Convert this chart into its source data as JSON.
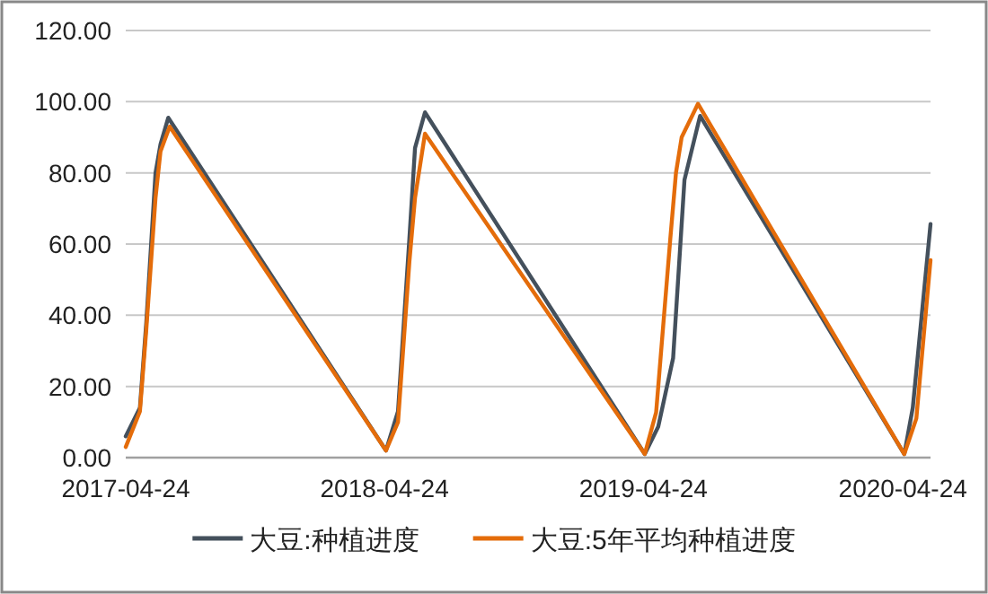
{
  "chart_data": {
    "type": "line",
    "x": [
      "2017-04-24",
      "2017-05-14",
      "2017-05-23",
      "2017-06-05",
      "2017-06-12",
      "2017-06-23",
      "2018-04-26",
      "2018-05-13",
      "2018-05-29",
      "2018-06-06",
      "2018-06-20",
      "2019-04-26",
      "2019-05-15",
      "2019-06-05",
      "2019-06-21",
      "2019-07-13",
      "2020-04-26",
      "2020-05-08",
      "2020-06-02"
    ],
    "series": [
      {
        "name": "大豆:种植进度",
        "color": "#44505c",
        "values": [
          6,
          14,
          38,
          80,
          88,
          95.5,
          2,
          13,
          61.5,
          87,
          97,
          1,
          8.7,
          28,
          78,
          96,
          1,
          14,
          65.6
        ]
      },
      {
        "name": "大豆:5年平均种植进度",
        "color": "#e46c0a",
        "x": [
          "2017-04-24",
          "2017-05-14",
          "2017-05-23",
          "2017-06-05",
          "2017-06-12",
          "2017-06-25",
          "2018-04-26",
          "2018-05-13",
          "2018-05-29",
          "2018-06-06",
          "2018-06-20",
          "2019-04-26",
          "2019-05-12",
          "2019-06-01",
          "2019-06-09",
          "2019-06-17",
          "2019-07-10",
          "2020-04-26",
          "2020-05-13",
          "2020-06-02"
        ],
        "values": [
          3,
          13,
          36,
          73,
          86,
          93,
          2,
          10,
          55,
          73,
          91,
          1,
          12.7,
          61.5,
          80,
          90,
          99.4,
          1,
          11,
          55.5
        ]
      }
    ],
    "xlim": [
      "2017-04-24",
      "2020-06-02"
    ],
    "xticks": [
      "2017-04-24",
      "2018-04-24",
      "2019-04-24",
      "2020-04-24"
    ],
    "ylim": [
      0,
      120
    ],
    "yticks": [
      {
        "value": 0,
        "label": "0.00"
      },
      {
        "value": 20,
        "label": "20.00"
      },
      {
        "value": 40,
        "label": "40.00"
      },
      {
        "value": 60,
        "label": "60.00"
      },
      {
        "value": 80,
        "label": "80.00"
      },
      {
        "value": 100,
        "label": "100.00"
      },
      {
        "value": 120,
        "label": "120.00"
      }
    ],
    "grid": "y",
    "legend": "bottom",
    "marker": "none",
    "line_style": "solid"
  }
}
